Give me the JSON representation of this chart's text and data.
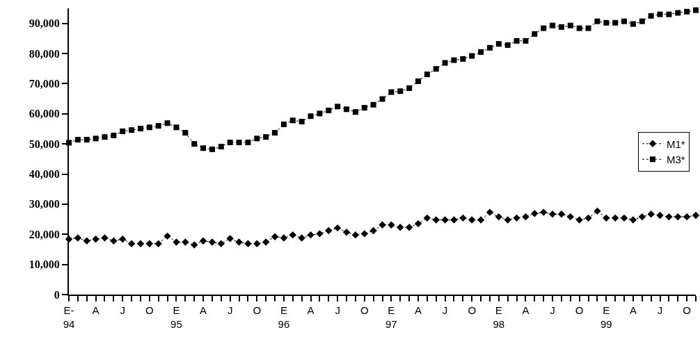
{
  "chart_data": {
    "type": "line",
    "categories": [
      "E-\n94",
      null,
      null,
      "A",
      null,
      null,
      "J",
      null,
      null,
      "O",
      null,
      null,
      "E\n95",
      null,
      null,
      "A",
      null,
      null,
      "J",
      null,
      null,
      "O",
      null,
      null,
      "E\n96",
      null,
      null,
      "A",
      null,
      null,
      "J",
      null,
      null,
      "O",
      null,
      null,
      "E\n97",
      null,
      null,
      "A",
      null,
      null,
      "J",
      null,
      null,
      "O",
      null,
      null,
      "E\n98",
      null,
      null,
      "A",
      null,
      null,
      "J",
      null,
      null,
      "O",
      null,
      null,
      "E\n99",
      null,
      null,
      "A",
      null,
      null,
      "J",
      null,
      null,
      "O",
      null
    ],
    "series": [
      {
        "name": "M1*",
        "color": "#000000",
        "marker": "diamond",
        "values": [
          18400,
          18800,
          17800,
          18400,
          18800,
          17800,
          18400,
          16900,
          16900,
          16900,
          16900,
          19400,
          17400,
          17400,
          16500,
          17800,
          17400,
          16900,
          18600,
          17400,
          16900,
          16900,
          17400,
          19200,
          18800,
          19800,
          18800,
          19800,
          20200,
          21200,
          22100,
          20700,
          19800,
          20200,
          21200,
          23100,
          23100,
          22300,
          22300,
          23500,
          25400,
          24800,
          24800,
          24800,
          25400,
          24800,
          24800,
          27300,
          25800,
          24800,
          25400,
          25800,
          26900,
          27300,
          26700,
          26700,
          25800,
          24800,
          25400,
          27700,
          25400,
          25400,
          25400,
          24800,
          25800,
          26700,
          26300,
          25800,
          25800,
          25800,
          26300
        ]
      },
      {
        "name": "M3*",
        "color": "#000000",
        "marker": "square",
        "values": [
          50400,
          51400,
          51400,
          51800,
          52300,
          52800,
          54200,
          54600,
          55100,
          55500,
          56000,
          56900,
          55500,
          53700,
          50000,
          48600,
          48200,
          49100,
          50500,
          50500,
          50500,
          51800,
          52300,
          53700,
          56500,
          57800,
          57400,
          59200,
          60100,
          61100,
          62400,
          61500,
          60600,
          62000,
          63000,
          64900,
          67200,
          67500,
          68500,
          70800,
          73100,
          74900,
          76900,
          77800,
          78200,
          79200,
          80500,
          81900,
          83200,
          82800,
          84200,
          84200,
          86500,
          88400,
          89300,
          88800,
          89300,
          88400,
          88400,
          90700,
          90200,
          90200,
          90700,
          89800,
          90700,
          92500,
          93000,
          93000,
          93500,
          93900,
          94400
        ]
      }
    ],
    "ylim": [
      0,
      95000
    ],
    "yticks": [
      0,
      {
        "value": 10000,
        "label": "10,000"
      },
      {
        "value": 20000,
        "label": "20,000"
      },
      {
        "value": 30000,
        "label": "30,000"
      },
      {
        "value": 40000,
        "label": "40,000"
      },
      {
        "value": 50000,
        "label": "50,000"
      },
      {
        "value": 60000,
        "label": "60,000"
      },
      {
        "value": 70000,
        "label": "70,000"
      },
      {
        "value": 80000,
        "label": "80,000"
      },
      {
        "value": 90000,
        "label": "90,000"
      }
    ],
    "line_style": "dotted",
    "legend": "right"
  }
}
